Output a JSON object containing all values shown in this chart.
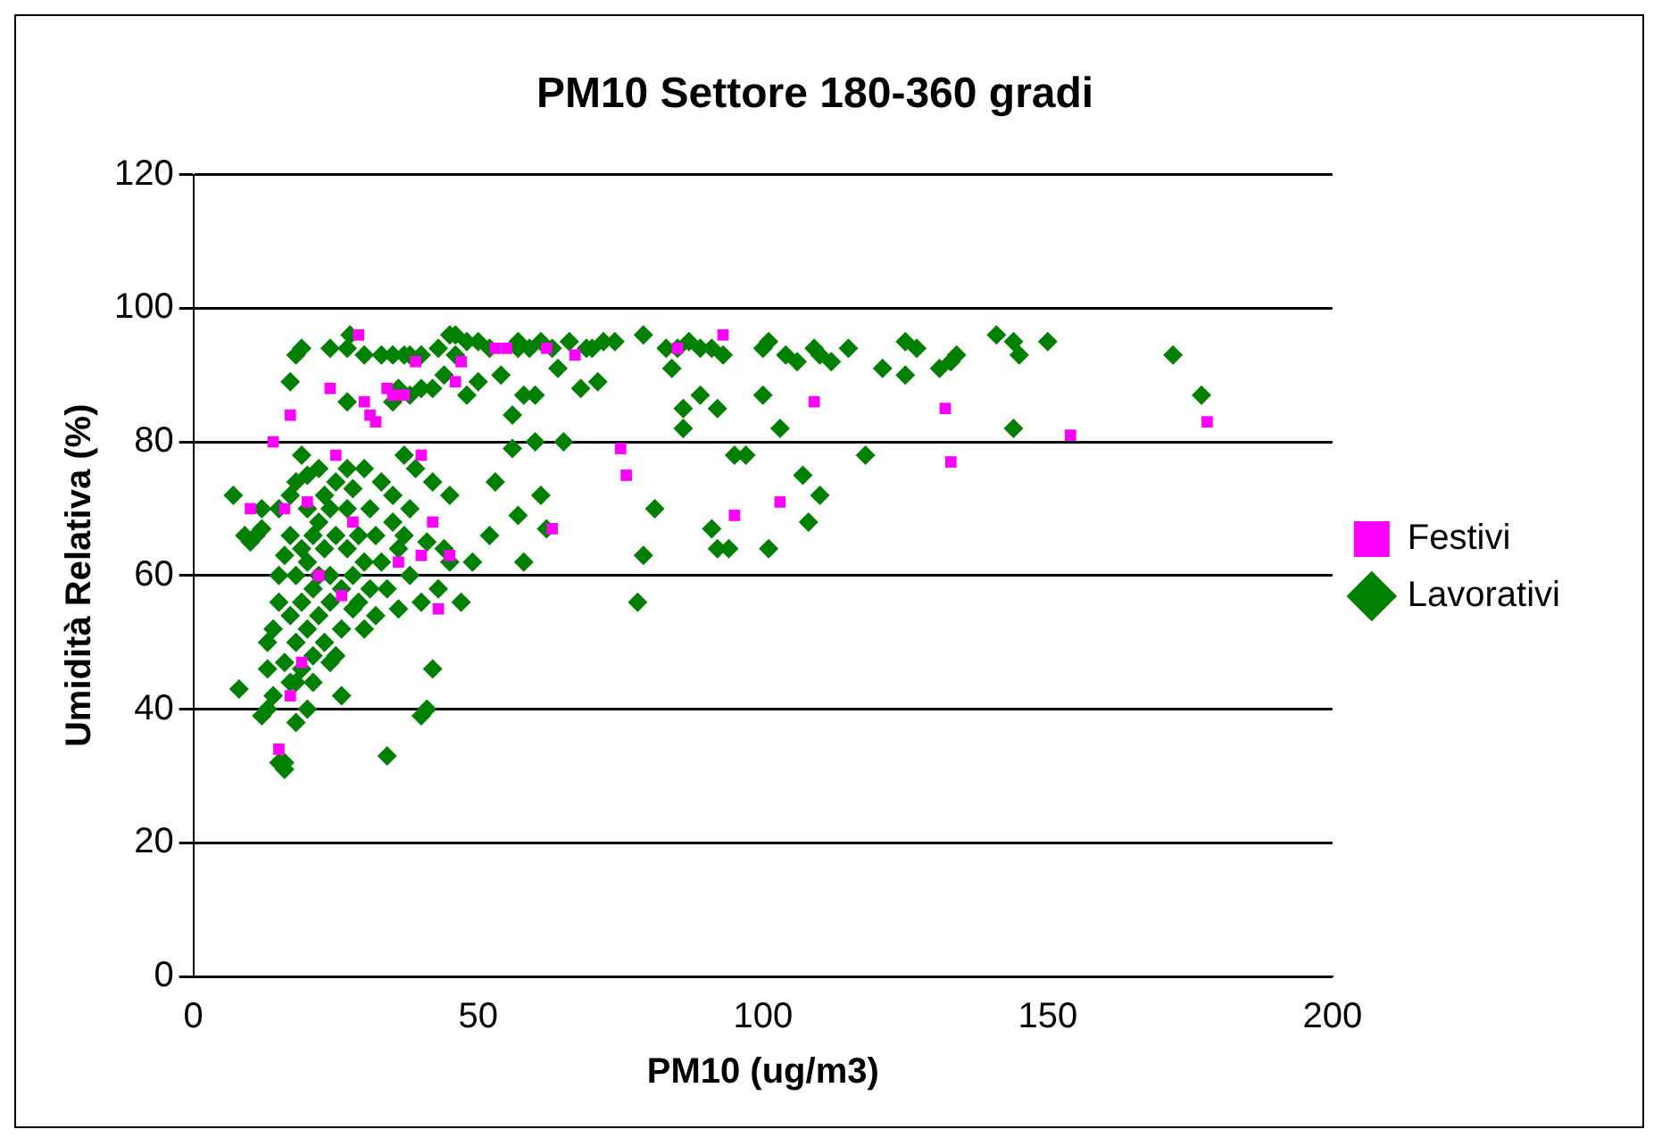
{
  "chart_data": {
    "type": "scatter",
    "title": "PM10 Settore 180-360 gradi",
    "xlabel": "PM10 (ug/m3)",
    "ylabel": "Umidità Relativa (%)",
    "xlim": [
      0,
      200
    ],
    "xticks": [
      0,
      50,
      100,
      150,
      200
    ],
    "ylim": [
      0,
      120
    ],
    "yticks": [
      0,
      20,
      40,
      60,
      80,
      100,
      120
    ],
    "grid": "y",
    "legend": "right",
    "series": [
      {
        "name": "Festivi",
        "color": "#ff00ff",
        "marker": "square",
        "x": [
          14,
          17,
          10,
          20,
          24,
          25,
          29,
          30,
          31,
          32,
          34,
          35,
          37,
          39,
          40,
          36,
          40,
          43,
          46,
          45,
          15,
          17,
          19,
          22,
          26,
          28,
          47,
          53,
          55,
          62,
          63,
          67,
          75,
          76,
          85,
          93,
          95,
          103,
          109,
          132,
          133,
          154,
          178,
          16,
          42
        ],
        "values": [
          80,
          84,
          70,
          71,
          88,
          78,
          96,
          86,
          84,
          83,
          88,
          87,
          87,
          92,
          78,
          62,
          63,
          55,
          89,
          63,
          34,
          42,
          47,
          60,
          57,
          68,
          92,
          94,
          94,
          94,
          67,
          93,
          79,
          75,
          94,
          96,
          69,
          71,
          86,
          85,
          77,
          81,
          83,
          70,
          68
        ]
      },
      {
        "name": "Lavorativi",
        "color": "#008000",
        "marker": "diamond",
        "x": [
          18,
          19,
          24,
          27,
          27.5,
          30,
          33,
          35,
          37,
          38,
          40,
          43,
          45,
          46,
          48,
          50,
          52,
          57,
          57,
          59,
          61,
          63,
          66,
          69,
          70,
          72,
          74,
          79,
          83,
          85,
          87,
          89,
          91,
          93,
          100,
          101,
          104,
          106,
          109,
          110,
          112,
          115,
          121,
          125,
          127,
          131,
          133,
          134,
          141,
          144,
          145,
          150,
          172,
          177,
          17,
          27,
          35,
          36,
          38,
          40,
          42,
          44,
          46,
          48,
          50,
          54,
          56,
          58,
          60,
          64,
          68,
          71,
          84,
          86,
          86,
          89,
          92,
          95,
          100,
          103,
          118,
          107,
          144,
          125,
          97,
          49,
          47,
          52,
          53,
          56,
          57,
          58,
          60,
          61,
          62,
          65,
          79,
          81,
          78,
          91,
          92,
          94,
          101,
          108,
          110,
          7,
          8,
          9,
          10,
          12,
          12,
          13,
          13,
          13,
          14,
          14,
          15,
          15,
          15,
          16,
          16,
          16,
          17,
          17,
          17,
          17,
          18,
          18,
          18,
          18,
          19,
          19,
          19,
          19,
          20,
          20,
          20,
          20,
          20,
          21,
          21,
          21,
          22,
          22,
          22,
          22,
          23,
          23,
          23,
          24,
          24,
          24,
          25,
          25,
          25,
          26,
          26,
          27,
          27,
          27,
          28,
          28,
          28,
          29,
          29,
          30,
          30,
          30,
          31,
          31,
          32,
          32,
          33,
          33,
          34,
          34,
          35,
          35,
          36,
          36,
          37,
          37,
          38,
          38,
          39,
          40,
          40,
          41,
          41,
          42,
          42,
          43,
          44,
          45,
          45,
          16,
          15,
          12,
          11,
          18,
          21,
          24,
          26
        ],
        "values": [
          93,
          94,
          94,
          94,
          96,
          93,
          93,
          93,
          93,
          93,
          93,
          94,
          96,
          96,
          95,
          95,
          94,
          94,
          95,
          94,
          95,
          94,
          95,
          94,
          94,
          95,
          95,
          96,
          94,
          94,
          95,
          94,
          94,
          93,
          94,
          95,
          93,
          92,
          94,
          93,
          92,
          94,
          91,
          95,
          94,
          91,
          92,
          93,
          96,
          95,
          93,
          95,
          93,
          87,
          89,
          86,
          86,
          88,
          87,
          88,
          88,
          90,
          93,
          87,
          89,
          90,
          84,
          87,
          87,
          91,
          88,
          89,
          91,
          85,
          82,
          87,
          85,
          78,
          87,
          82,
          78,
          75,
          82,
          90,
          78,
          62,
          56,
          66,
          74,
          79,
          69,
          62,
          80,
          72,
          67,
          80,
          63,
          70,
          56,
          67,
          64,
          64,
          64,
          68,
          72,
          72,
          43,
          66,
          65,
          70,
          67,
          50,
          46,
          40,
          42,
          52,
          56,
          60,
          70,
          63,
          47,
          32,
          72,
          66,
          54,
          44,
          74,
          60,
          50,
          38,
          78,
          64,
          56,
          46,
          75,
          70,
          62,
          52,
          40,
          66,
          58,
          48,
          76,
          68,
          60,
          54,
          72,
          64,
          50,
          70,
          60,
          56,
          74,
          66,
          48,
          58,
          52,
          76,
          70,
          64,
          60,
          55,
          73,
          66,
          56,
          76,
          62,
          52,
          70,
          58,
          54,
          66,
          74,
          62,
          58,
          33,
          68,
          72,
          64,
          55,
          78,
          66,
          60,
          70,
          76,
          56,
          39,
          65,
          40,
          46,
          74,
          58,
          64,
          72,
          62,
          31,
          32,
          39,
          66,
          44,
          44,
          47,
          42
        ]
      }
    ]
  }
}
